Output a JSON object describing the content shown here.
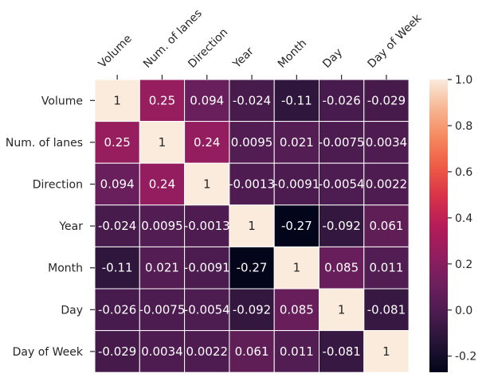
{
  "chart_data": {
    "type": "heatmap",
    "title": "",
    "variables": [
      "Volume",
      "Num. of lanes",
      "Direction",
      "Year",
      "Month",
      "Day",
      "Day of Week"
    ],
    "matrix": [
      [
        1,
        0.25,
        0.094,
        -0.024,
        -0.11,
        -0.026,
        -0.029
      ],
      [
        0.25,
        1,
        0.24,
        0.0095,
        0.021,
        -0.0075,
        0.0034
      ],
      [
        0.094,
        0.24,
        1,
        -0.0013,
        -0.0091,
        -0.0054,
        0.0022
      ],
      [
        -0.024,
        0.0095,
        -0.0013,
        1,
        -0.27,
        -0.092,
        0.061
      ],
      [
        -0.11,
        0.021,
        -0.0091,
        -0.27,
        1,
        0.085,
        0.011
      ],
      [
        -0.026,
        -0.0075,
        -0.0054,
        -0.092,
        0.085,
        1,
        -0.081
      ],
      [
        -0.029,
        0.0034,
        0.0022,
        0.061,
        0.011,
        -0.081,
        1
      ]
    ],
    "annotations": [
      [
        "1",
        "0.25",
        "0.094",
        "-0.024",
        "-0.11",
        "-0.026",
        "-0.029"
      ],
      [
        "0.25",
        "1",
        "0.24",
        "0.0095",
        "0.021",
        "-0.0075",
        "0.0034"
      ],
      [
        "0.094",
        "0.24",
        "1",
        "-0.0013",
        "-0.0091",
        "-0.0054",
        "0.0022"
      ],
      [
        "-0.024",
        "0.0095",
        "-0.0013",
        "1",
        "-0.27",
        "-0.092",
        "0.061"
      ],
      [
        "-0.11",
        "0.021",
        "-0.0091",
        "-0.27",
        "1",
        "0.085",
        "0.011"
      ],
      [
        "-0.026",
        "-0.0075",
        "-0.0054",
        "-0.092",
        "0.085",
        "1",
        "-0.081"
      ],
      [
        "-0.029",
        "0.0034",
        "0.0022",
        "0.061",
        "0.011",
        "-0.081",
        "1"
      ]
    ],
    "colorscale": "rocket",
    "vmin": -0.27,
    "vmax": 1,
    "colorbar_ticks": [
      "1.0",
      "0.8",
      "0.6",
      "0.4",
      "0.2",
      "0.0",
      "-0.2"
    ],
    "colorbar_tick_values": [
      1.0,
      0.8,
      0.6,
      0.4,
      0.2,
      0.0,
      -0.2
    ]
  }
}
